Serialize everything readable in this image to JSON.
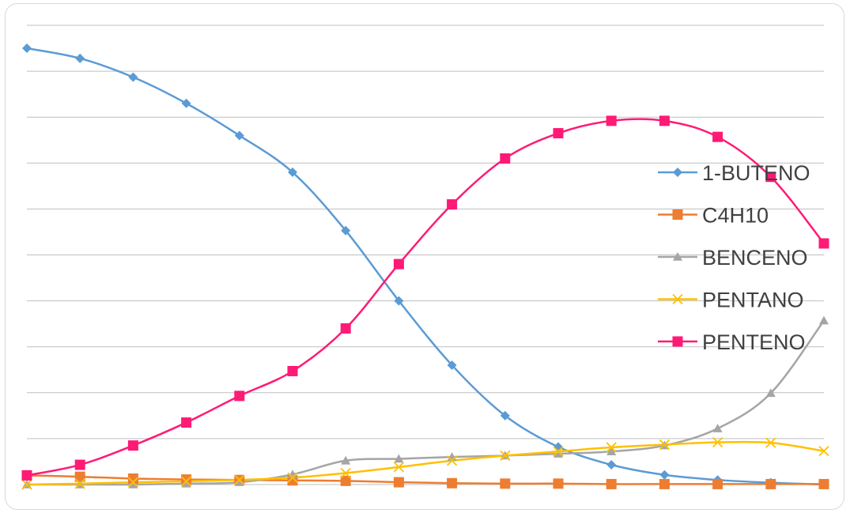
{
  "chart_data": {
    "type": "line",
    "smooth": true,
    "title": "",
    "xlabel": "",
    "ylabel": "",
    "grid": true,
    "legend_position": "right",
    "ylim": [
      0,
      10
    ],
    "x": [
      1,
      2,
      3,
      4,
      5,
      6,
      7,
      8,
      9,
      10,
      11,
      12,
      13,
      14,
      15,
      16
    ],
    "series": [
      {
        "name": "1-BUTENO",
        "color": "#5b9bd5",
        "marker": "diamond",
        "values": [
          9.5,
          9.28,
          8.87,
          8.3,
          7.6,
          6.8,
          5.53,
          4.0,
          2.6,
          1.5,
          0.82,
          0.43,
          0.21,
          0.1,
          0.04,
          0.0
        ]
      },
      {
        "name": "C4H10",
        "color": "#ed7d31",
        "marker": "square",
        "values": [
          0.2,
          0.17,
          0.13,
          0.11,
          0.1,
          0.09,
          0.08,
          0.05,
          0.03,
          0.02,
          0.02,
          0.01,
          0.01,
          0.01,
          0.01,
          0.01
        ]
      },
      {
        "name": "BENCENO",
        "color": "#a5a5a5",
        "marker": "triangle",
        "values": [
          0.0,
          0.0,
          0.0,
          0.02,
          0.05,
          0.22,
          0.52,
          0.56,
          0.6,
          0.63,
          0.67,
          0.72,
          0.85,
          1.22,
          1.99,
          3.57
        ]
      },
      {
        "name": "PENTANO",
        "color": "#ffc000",
        "marker": "x",
        "values": [
          0.0,
          0.02,
          0.05,
          0.07,
          0.1,
          0.15,
          0.25,
          0.38,
          0.52,
          0.63,
          0.72,
          0.81,
          0.87,
          0.92,
          0.91,
          0.73
        ]
      },
      {
        "name": "PENTENO",
        "color": "#ff1a75",
        "marker": "square",
        "values": [
          0.2,
          0.43,
          0.85,
          1.35,
          1.93,
          2.47,
          3.4,
          4.8,
          6.1,
          7.1,
          7.65,
          7.92,
          7.92,
          7.57,
          6.7,
          5.25
        ]
      }
    ]
  }
}
